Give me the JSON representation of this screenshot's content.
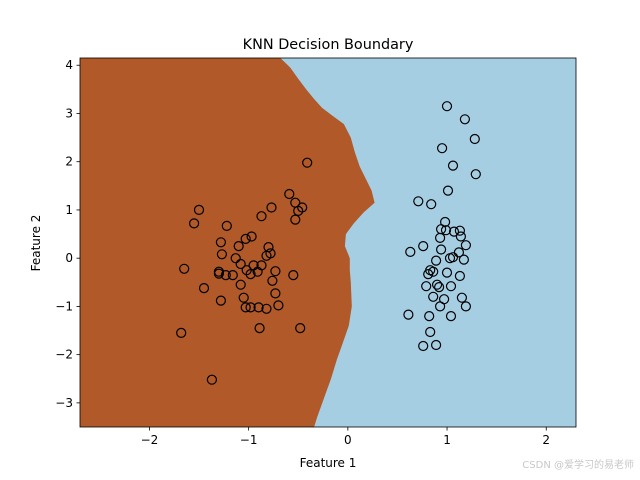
{
  "chart_data": {
    "type": "scatter",
    "title": "KNN Decision Boundary",
    "xlabel": "Feature 1",
    "ylabel": "Feature 2",
    "xlim": [
      -2.7,
      2.3
    ],
    "ylim": [
      -3.5,
      4.15
    ],
    "xticks": [
      -2,
      -1,
      0,
      1,
      2
    ],
    "yticks": [
      -3,
      -2,
      -1,
      0,
      1,
      2,
      3,
      4
    ],
    "grid": false,
    "regions": {
      "class_a_color": "#b15928",
      "class_b_color": "#a6cee3",
      "boundary": [
        [
          -0.68,
          4.15
        ],
        [
          -0.58,
          3.95
        ],
        [
          -0.5,
          3.72
        ],
        [
          -0.42,
          3.5
        ],
        [
          -0.34,
          3.3
        ],
        [
          -0.26,
          3.12
        ],
        [
          -0.16,
          2.96
        ],
        [
          -0.04,
          2.78
        ],
        [
          0.03,
          2.5
        ],
        [
          0.07,
          2.2
        ],
        [
          0.12,
          1.9
        ],
        [
          0.18,
          1.65
        ],
        [
          0.24,
          1.4
        ],
        [
          0.27,
          1.15
        ],
        [
          0.16,
          0.95
        ],
        [
          0.06,
          0.72
        ],
        [
          -0.02,
          0.5
        ],
        [
          -0.03,
          0.25
        ],
        [
          0.02,
          0.0
        ],
        [
          0.02,
          -0.25
        ],
        [
          0.03,
          -0.5
        ],
        [
          0.04,
          -1.0
        ],
        [
          0.01,
          -1.4
        ],
        [
          -0.05,
          -1.75
        ],
        [
          -0.11,
          -2.1
        ],
        [
          -0.17,
          -2.5
        ],
        [
          -0.24,
          -2.9
        ],
        [
          -0.31,
          -3.3
        ],
        [
          -0.34,
          -3.5
        ]
      ]
    },
    "series": [
      {
        "points": [
          [
            -1.5,
            1.0
          ],
          [
            -1.55,
            0.72
          ],
          [
            -1.22,
            0.67
          ],
          [
            -1.28,
            0.33
          ],
          [
            -1.1,
            0.25
          ],
          [
            -1.03,
            0.4
          ],
          [
            -0.97,
            0.45
          ],
          [
            -0.87,
            0.87
          ],
          [
            -0.77,
            1.05
          ],
          [
            -0.8,
            0.23
          ],
          [
            -0.82,
            0.05
          ],
          [
            -0.78,
            0.1
          ],
          [
            -1.27,
            0.08
          ],
          [
            -1.13,
            0.0
          ],
          [
            -1.08,
            -0.12
          ],
          [
            -0.95,
            -0.15
          ],
          [
            -1.02,
            -0.25
          ],
          [
            -0.98,
            -0.33
          ],
          [
            -0.91,
            -0.28
          ],
          [
            -0.87,
            -0.15
          ],
          [
            -1.3,
            -0.32
          ],
          [
            -1.23,
            -0.35
          ],
          [
            -1.16,
            -0.35
          ],
          [
            -1.3,
            -0.28
          ],
          [
            -0.73,
            -0.27
          ],
          [
            -0.76,
            -0.47
          ],
          [
            -0.73,
            -0.73
          ],
          [
            -0.55,
            -0.35
          ],
          [
            -1.65,
            -0.22
          ],
          [
            -1.45,
            -0.62
          ],
          [
            -1.08,
            -0.55
          ],
          [
            -1.05,
            -0.82
          ],
          [
            -1.28,
            -0.88
          ],
          [
            -1.03,
            -1.02
          ],
          [
            -0.98,
            -1.02
          ],
          [
            -0.9,
            -1.02
          ],
          [
            -0.82,
            -1.05
          ],
          [
            -0.7,
            -0.98
          ],
          [
            -0.48,
            -1.45
          ],
          [
            -0.89,
            -1.45
          ],
          [
            -1.68,
            -1.55
          ],
          [
            -1.37,
            -2.52
          ],
          [
            -0.59,
            1.33
          ],
          [
            -0.53,
            1.15
          ],
          [
            -0.5,
            0.98
          ],
          [
            -0.46,
            1.05
          ],
          [
            -0.53,
            0.8
          ],
          [
            -0.41,
            1.98
          ]
        ]
      },
      {
        "points": [
          [
            1.0,
            3.15
          ],
          [
            1.18,
            2.88
          ],
          [
            1.28,
            2.47
          ],
          [
            0.95,
            2.28
          ],
          [
            1.06,
            1.92
          ],
          [
            1.29,
            1.74
          ],
          [
            1.01,
            1.4
          ],
          [
            0.71,
            1.18
          ],
          [
            0.84,
            1.12
          ],
          [
            0.98,
            0.75
          ],
          [
            0.94,
            0.6
          ],
          [
            0.99,
            0.58
          ],
          [
            1.07,
            0.55
          ],
          [
            1.13,
            0.57
          ],
          [
            1.14,
            0.45
          ],
          [
            0.93,
            0.42
          ],
          [
            0.76,
            0.25
          ],
          [
            0.94,
            0.18
          ],
          [
            1.19,
            0.27
          ],
          [
            0.63,
            0.13
          ],
          [
            1.12,
            0.12
          ],
          [
            1.03,
            0.0
          ],
          [
            1.06,
            0.02
          ],
          [
            0.89,
            -0.05
          ],
          [
            1.17,
            -0.03
          ],
          [
            0.83,
            -0.25
          ],
          [
            0.86,
            -0.28
          ],
          [
            1.0,
            -0.3
          ],
          [
            0.81,
            -0.33
          ],
          [
            1.13,
            -0.37
          ],
          [
            0.79,
            -0.58
          ],
          [
            0.9,
            -0.55
          ],
          [
            0.92,
            -0.6
          ],
          [
            1.04,
            -0.58
          ],
          [
            0.86,
            -0.8
          ],
          [
            0.97,
            -0.85
          ],
          [
            1.15,
            -0.82
          ],
          [
            0.93,
            -1.0
          ],
          [
            1.19,
            -1.0
          ],
          [
            1.04,
            -1.2
          ],
          [
            0.61,
            -1.17
          ],
          [
            0.82,
            -1.2
          ],
          [
            0.83,
            -1.53
          ],
          [
            0.76,
            -1.82
          ],
          [
            0.89,
            -1.8
          ]
        ]
      }
    ]
  },
  "watermark": "CSDN @爱学习的易老师"
}
